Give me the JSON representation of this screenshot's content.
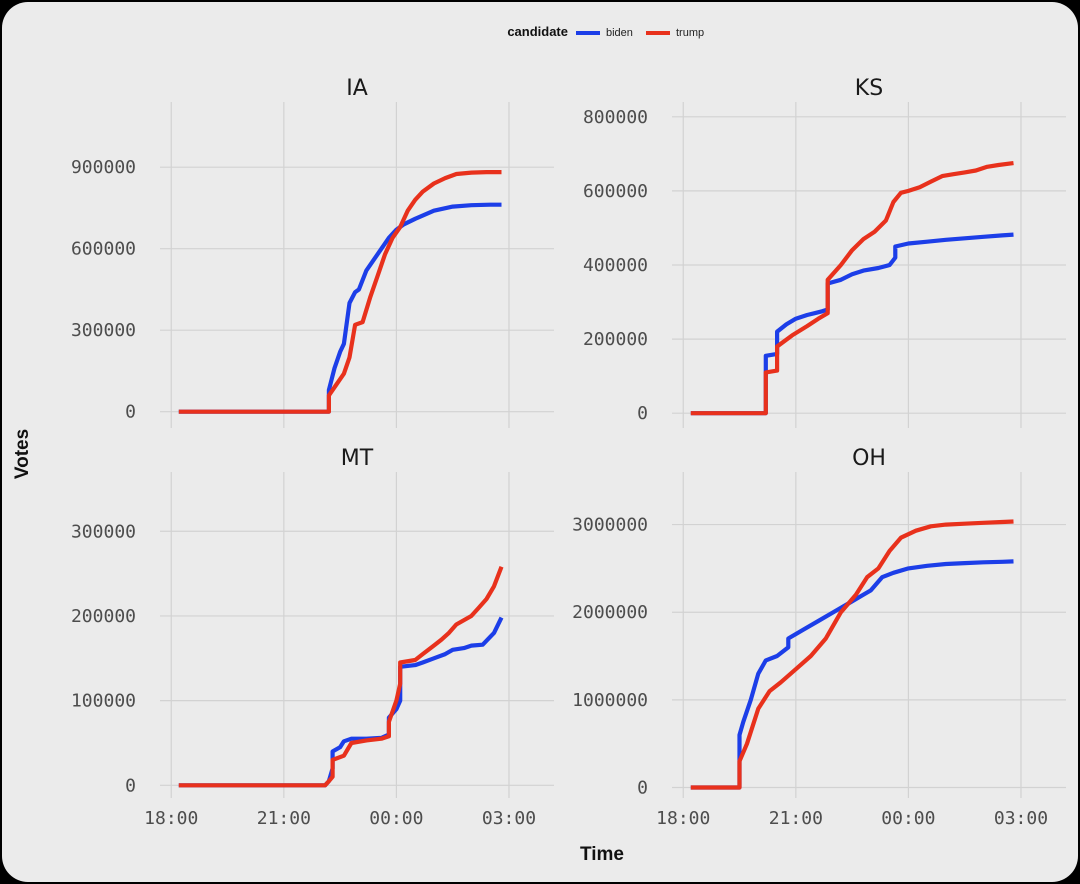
{
  "legend": {
    "title": "candidate",
    "items": [
      {
        "label": "biden",
        "color": "#1c3ee8"
      },
      {
        "label": "trump",
        "color": "#e8311c"
      }
    ]
  },
  "axis": {
    "x_title": "Time",
    "y_title": "Votes"
  },
  "chart_data": [
    {
      "type": "line",
      "title": "IA",
      "xlabel": "Time",
      "ylabel": "Votes",
      "xlim": [
        17.7,
        28.2
      ],
      "x_ticks": [
        18,
        21,
        24,
        27
      ],
      "x_tick_labels": [
        "18:00",
        "21:00",
        "00:00",
        "03:00"
      ],
      "y_ticks": [
        0,
        300000,
        600000,
        900000
      ],
      "y_tick_labels": [
        "0",
        "300000",
        "600000",
        "900000"
      ],
      "ylim": [
        -60000,
        1140000
      ],
      "series": [
        {
          "name": "biden",
          "color": "#1c3ee8",
          "x": [
            18.2,
            22.2,
            22.2,
            22.35,
            22.5,
            22.6,
            22.75,
            22.9,
            23.0,
            23.2,
            23.4,
            23.6,
            23.8,
            24.0,
            24.2,
            24.5,
            25.0,
            25.5,
            26.0,
            26.5,
            26.8
          ],
          "y": [
            0,
            0,
            80000,
            160000,
            220000,
            250000,
            400000,
            440000,
            450000,
            520000,
            560000,
            600000,
            640000,
            670000,
            690000,
            710000,
            740000,
            755000,
            760000,
            762000,
            762000
          ]
        },
        {
          "name": "trump",
          "color": "#e8311c",
          "x": [
            18.2,
            22.2,
            22.2,
            22.4,
            22.6,
            22.75,
            22.9,
            23.1,
            23.3,
            23.5,
            23.7,
            23.9,
            24.1,
            24.3,
            24.5,
            24.7,
            25.0,
            25.3,
            25.6,
            26.0,
            26.4,
            26.8
          ],
          "y": [
            0,
            0,
            60000,
            100000,
            140000,
            200000,
            320000,
            330000,
            420000,
            500000,
            580000,
            640000,
            680000,
            740000,
            780000,
            810000,
            840000,
            860000,
            875000,
            880000,
            882000,
            882000
          ]
        }
      ]
    },
    {
      "type": "line",
      "title": "KS",
      "xlabel": "Time",
      "ylabel": "Votes",
      "xlim": [
        17.7,
        28.2
      ],
      "x_ticks": [
        18,
        21,
        24,
        27
      ],
      "x_tick_labels": [
        "18:00",
        "21:00",
        "00:00",
        "03:00"
      ],
      "y_ticks": [
        0,
        200000,
        400000,
        600000,
        800000
      ],
      "y_tick_labels": [
        "0",
        "200000",
        "400000",
        "600000",
        "800000"
      ],
      "ylim": [
        -40000,
        840000
      ],
      "series": [
        {
          "name": "biden",
          "color": "#1c3ee8",
          "x": [
            18.2,
            20.2,
            20.2,
            20.5,
            20.5,
            20.75,
            21.0,
            21.3,
            21.5,
            21.7,
            21.85,
            21.85,
            22.2,
            22.5,
            22.8,
            23.2,
            23.5,
            23.65,
            23.65,
            24.0,
            24.5,
            25.0,
            25.5,
            26.0,
            26.5,
            26.8
          ],
          "y": [
            0,
            0,
            155000,
            160000,
            220000,
            240000,
            255000,
            265000,
            270000,
            275000,
            280000,
            350000,
            360000,
            375000,
            385000,
            392000,
            400000,
            420000,
            450000,
            458000,
            463000,
            468000,
            472000,
            476000,
            480000,
            482000
          ]
        },
        {
          "name": "trump",
          "color": "#e8311c",
          "x": [
            18.2,
            20.2,
            20.2,
            20.5,
            20.5,
            20.9,
            21.3,
            21.6,
            21.85,
            21.85,
            22.2,
            22.5,
            22.8,
            23.1,
            23.4,
            23.6,
            23.8,
            24.0,
            24.3,
            24.6,
            24.9,
            25.2,
            25.5,
            25.8,
            26.1,
            26.4,
            26.8
          ],
          "y": [
            0,
            0,
            110000,
            115000,
            180000,
            210000,
            235000,
            255000,
            270000,
            360000,
            400000,
            440000,
            470000,
            490000,
            520000,
            570000,
            595000,
            600000,
            610000,
            625000,
            640000,
            645000,
            650000,
            655000,
            665000,
            670000,
            675000
          ]
        }
      ]
    },
    {
      "type": "line",
      "title": "MT",
      "xlabel": "Time",
      "ylabel": "Votes",
      "xlim": [
        17.7,
        28.2
      ],
      "x_ticks": [
        18,
        21,
        24,
        27
      ],
      "x_tick_labels": [
        "18:00",
        "21:00",
        "00:00",
        "03:00"
      ],
      "y_ticks": [
        0,
        100000,
        200000,
        300000
      ],
      "y_tick_labels": [
        "0",
        "100000",
        "200000",
        "300000"
      ],
      "ylim": [
        -15000,
        370000
      ],
      "series": [
        {
          "name": "biden",
          "color": "#1c3ee8",
          "x": [
            18.2,
            22.1,
            22.2,
            22.3,
            22.3,
            22.5,
            22.6,
            22.8,
            23.2,
            23.6,
            23.8,
            23.8,
            24.0,
            24.1,
            24.1,
            24.5,
            24.7,
            25.0,
            25.3,
            25.5,
            25.8,
            26.0,
            26.3,
            26.6,
            26.8
          ],
          "y": [
            0,
            0,
            5000,
            20000,
            40000,
            45000,
            52000,
            55000,
            55000,
            56000,
            60000,
            80000,
            90000,
            100000,
            140000,
            142000,
            145000,
            150000,
            155000,
            160000,
            162000,
            165000,
            166000,
            180000,
            198000
          ]
        },
        {
          "name": "trump",
          "color": "#e8311c",
          "x": [
            18.2,
            22.1,
            22.2,
            22.3,
            22.3,
            22.6,
            22.8,
            23.2,
            23.6,
            23.8,
            23.8,
            24.0,
            24.1,
            24.1,
            24.5,
            24.7,
            25.0,
            25.2,
            25.4,
            25.6,
            25.8,
            26.0,
            26.2,
            26.4,
            26.6,
            26.8
          ],
          "y": [
            0,
            0,
            5000,
            10000,
            30000,
            35000,
            50000,
            53000,
            55000,
            58000,
            75000,
            100000,
            120000,
            145000,
            148000,
            155000,
            165000,
            172000,
            180000,
            190000,
            195000,
            200000,
            210000,
            220000,
            235000,
            258000
          ]
        }
      ]
    },
    {
      "type": "line",
      "title": "OH",
      "xlabel": "Time",
      "ylabel": "Votes",
      "xlim": [
        17.7,
        28.2
      ],
      "x_ticks": [
        18,
        21,
        24,
        27
      ],
      "x_tick_labels": [
        "18:00",
        "21:00",
        "00:00",
        "03:00"
      ],
      "y_ticks": [
        0,
        1000000,
        2000000,
        3000000
      ],
      "y_tick_labels": [
        "0",
        "1000000",
        "2000000",
        "3000000"
      ],
      "ylim": [
        -120000,
        3600000
      ],
      "series": [
        {
          "name": "biden",
          "color": "#1c3ee8",
          "x": [
            18.2,
            19.5,
            19.5,
            19.6,
            19.8,
            20.0,
            20.2,
            20.5,
            20.8,
            20.8,
            21.2,
            21.6,
            22.0,
            22.4,
            22.8,
            23.0,
            23.3,
            23.6,
            24.0,
            24.5,
            25.0,
            25.5,
            26.0,
            26.5,
            26.8
          ],
          "y": [
            0,
            0,
            600000,
            750000,
            1000000,
            1300000,
            1450000,
            1500000,
            1600000,
            1700000,
            1800000,
            1900000,
            2000000,
            2100000,
            2200000,
            2250000,
            2400000,
            2450000,
            2500000,
            2530000,
            2550000,
            2560000,
            2570000,
            2575000,
            2580000
          ]
        },
        {
          "name": "trump",
          "color": "#e8311c",
          "x": [
            18.2,
            19.5,
            19.5,
            19.7,
            20.0,
            20.3,
            20.6,
            21.0,
            21.4,
            21.8,
            22.2,
            22.6,
            22.9,
            23.2,
            23.5,
            23.8,
            24.2,
            24.6,
            25.0,
            25.5,
            26.0,
            26.5,
            26.8
          ],
          "y": [
            0,
            0,
            300000,
            500000,
            900000,
            1100000,
            1200000,
            1350000,
            1500000,
            1700000,
            2000000,
            2200000,
            2400000,
            2500000,
            2700000,
            2850000,
            2930000,
            2980000,
            3000000,
            3010000,
            3020000,
            3030000,
            3035000
          ]
        }
      ]
    }
  ]
}
